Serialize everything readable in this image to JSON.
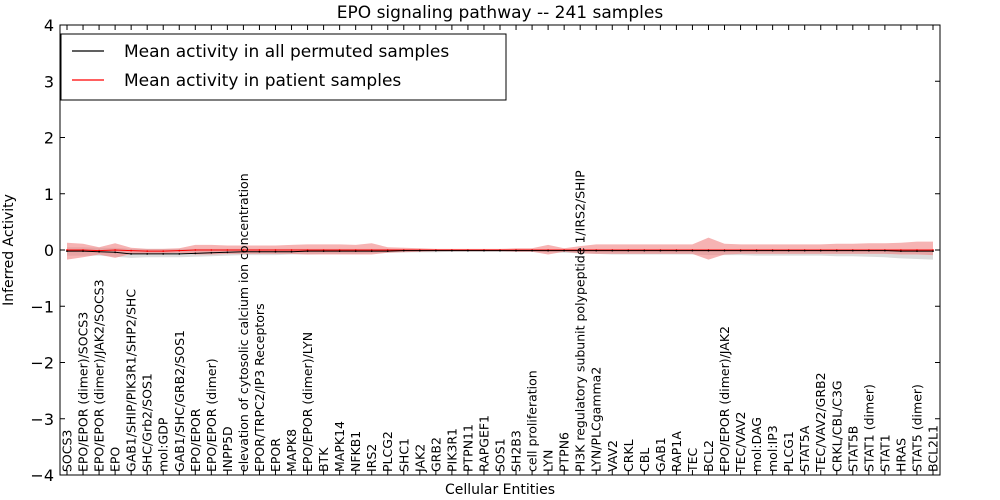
{
  "chart_data": {
    "type": "line",
    "title": "EPO signaling pathway -- 241 samples",
    "xlabel": "Cellular Entities",
    "ylabel": "Inferred Activity",
    "ylim": [
      -4,
      4
    ],
    "yticks": [
      -4,
      -3,
      -2,
      -1,
      0,
      1,
      2,
      3,
      4
    ],
    "ytick_labels": [
      "−4",
      "−3",
      "−2",
      "−1",
      "0",
      "1",
      "2",
      "3",
      "4"
    ],
    "grid": false,
    "legend_position": "top-left",
    "categories": [
      "SOCS3",
      "EPO/EPOR (dimer)/SOCS3",
      "EPO/EPOR (dimer)/JAK2/SOCS3",
      "EPO",
      "GAB1/SHIP/PIK3R1/SHP2/SHC",
      "SHC/Grb2/SOS1",
      "mol:GDP",
      "GAB1/SHC/GRB2/SOS1",
      "EPO/EPOR",
      "EPO/EPOR (dimer)",
      "INPP5D",
      "elevation of cytosolic calcium ion concentration",
      "EPOR/TRPC2/IP3 Receptors",
      "EPOR",
      "MAPK8",
      "EPO/EPOR (dimer)/LYN",
      "BTK",
      "MAPK14",
      "NFKB1",
      "IRS2",
      "PLCG2",
      "SHC1",
      "JAK2",
      "GRB2",
      "PIK3R1",
      "PTPN11",
      "RAPGEF1",
      "SOS1",
      "SH2B3",
      "cell proliferation",
      "LYN",
      "PTPN6",
      "PI3K regulatory subunit polypeptide 1/IRS2/SHIP",
      "LYN/PLCgamma2",
      "VAV2",
      "CRKL",
      "CBL",
      "GAB1",
      "RAP1A",
      "TEC",
      "BCL2",
      "EPO/EPOR (dimer)/JAK2",
      "TEC/VAV2",
      "mol:DAG",
      "mol:IP3",
      "PLCG1",
      "STAT5A",
      "TEC/VAV2/GRB2",
      "CRKL/CBL/C3G",
      "STAT5B",
      "STAT1 (dimer)",
      "STAT1",
      "HRAS",
      "STAT5 (dimer)",
      "BCL2L1"
    ],
    "series": [
      {
        "name": "Mean activity in all permuted samples",
        "color": "#000000",
        "band_color": "#c0c0c0",
        "values": [
          -0.02,
          -0.02,
          -0.03,
          -0.04,
          -0.07,
          -0.07,
          -0.07,
          -0.07,
          -0.06,
          -0.05,
          -0.04,
          -0.03,
          -0.03,
          -0.03,
          -0.03,
          -0.02,
          -0.02,
          -0.02,
          -0.02,
          -0.02,
          -0.02,
          -0.01,
          -0.01,
          -0.01,
          -0.01,
          -0.01,
          -0.01,
          -0.01,
          -0.01,
          -0.01,
          -0.01,
          -0.01,
          -0.01,
          -0.01,
          -0.01,
          -0.01,
          -0.01,
          -0.01,
          -0.01,
          -0.01,
          -0.01,
          -0.01,
          -0.01,
          -0.01,
          -0.01,
          -0.01,
          -0.01,
          -0.01,
          -0.01,
          -0.01,
          -0.01,
          -0.01,
          -0.02,
          -0.02,
          -0.02
        ],
        "band_upper": [
          0.05,
          0.05,
          0.04,
          0.04,
          0.02,
          0.02,
          0.02,
          0.02,
          0.02,
          0.02,
          0.02,
          0.02,
          0.02,
          0.02,
          0.02,
          0.02,
          0.02,
          0.02,
          0.02,
          0.02,
          0.02,
          0.01,
          0.01,
          0.01,
          0.01,
          0.01,
          0.01,
          0.01,
          0.01,
          0.01,
          0.01,
          0.01,
          0.01,
          0.01,
          0.01,
          0.01,
          0.01,
          0.01,
          0.01,
          0.01,
          0.01,
          0.01,
          0.01,
          0.01,
          0.01,
          0.01,
          0.01,
          0.01,
          0.01,
          0.01,
          0.01,
          0.01,
          0.01,
          0.01,
          0.01
        ],
        "band_lower": [
          -0.1,
          -0.1,
          -0.1,
          -0.12,
          -0.14,
          -0.13,
          -0.13,
          -0.13,
          -0.12,
          -0.11,
          -0.1,
          -0.09,
          -0.09,
          -0.09,
          -0.08,
          -0.08,
          -0.07,
          -0.07,
          -0.07,
          -0.06,
          -0.05,
          -0.04,
          -0.04,
          -0.04,
          -0.03,
          -0.03,
          -0.03,
          -0.03,
          -0.03,
          -0.03,
          -0.04,
          -0.05,
          -0.06,
          -0.07,
          -0.08,
          -0.08,
          -0.08,
          -0.08,
          -0.08,
          -0.08,
          -0.09,
          -0.09,
          -0.09,
          -0.1,
          -0.1,
          -0.1,
          -0.1,
          -0.1,
          -0.11,
          -0.11,
          -0.12,
          -0.13,
          -0.15,
          -0.16,
          -0.17
        ]
      },
      {
        "name": "Mean activity in patient samples",
        "color": "#ff0000",
        "band_color": "#f08080",
        "values": [
          0.0,
          0.0,
          -0.01,
          0.0,
          -0.01,
          -0.02,
          -0.02,
          -0.01,
          0.0,
          0.0,
          0.0,
          0.0,
          0.0,
          0.0,
          0.0,
          0.0,
          0.0,
          0.0,
          0.0,
          0.0,
          0.0,
          0.0,
          0.0,
          0.0,
          0.0,
          0.0,
          0.0,
          0.0,
          0.0,
          0.0,
          0.0,
          0.0,
          0.0,
          0.0,
          0.0,
          0.0,
          0.0,
          0.0,
          0.0,
          0.0,
          0.0,
          0.0,
          0.0,
          0.0,
          0.0,
          0.0,
          0.0,
          0.0,
          0.0,
          0.0,
          0.0,
          0.0,
          0.0,
          0.0,
          0.0
        ],
        "band_upper": [
          0.13,
          0.11,
          0.05,
          0.12,
          0.04,
          0.02,
          0.02,
          0.03,
          0.09,
          0.09,
          0.08,
          0.08,
          0.08,
          0.08,
          0.09,
          0.1,
          0.1,
          0.1,
          0.09,
          0.12,
          0.05,
          0.04,
          0.03,
          0.02,
          0.02,
          0.02,
          0.02,
          0.02,
          0.03,
          0.03,
          0.09,
          0.03,
          0.07,
          0.1,
          0.1,
          0.1,
          0.1,
          0.1,
          0.1,
          0.1,
          0.22,
          0.11,
          0.1,
          0.1,
          0.1,
          0.1,
          0.1,
          0.1,
          0.11,
          0.11,
          0.12,
          0.12,
          0.13,
          0.15,
          0.15
        ],
        "band_lower": [
          -0.17,
          -0.13,
          -0.08,
          -0.14,
          -0.07,
          -0.06,
          -0.06,
          -0.05,
          -0.08,
          -0.08,
          -0.07,
          -0.07,
          -0.07,
          -0.07,
          -0.07,
          -0.08,
          -0.08,
          -0.08,
          -0.08,
          -0.08,
          -0.05,
          -0.04,
          -0.03,
          -0.02,
          -0.02,
          -0.02,
          -0.02,
          -0.02,
          -0.03,
          -0.03,
          -0.08,
          -0.03,
          -0.06,
          -0.07,
          -0.07,
          -0.07,
          -0.07,
          -0.07,
          -0.07,
          -0.07,
          -0.17,
          -0.08,
          -0.07,
          -0.07,
          -0.07,
          -0.07,
          -0.07,
          -0.07,
          -0.07,
          -0.07,
          -0.07,
          -0.07,
          -0.08,
          -0.08,
          -0.09
        ]
      }
    ]
  }
}
